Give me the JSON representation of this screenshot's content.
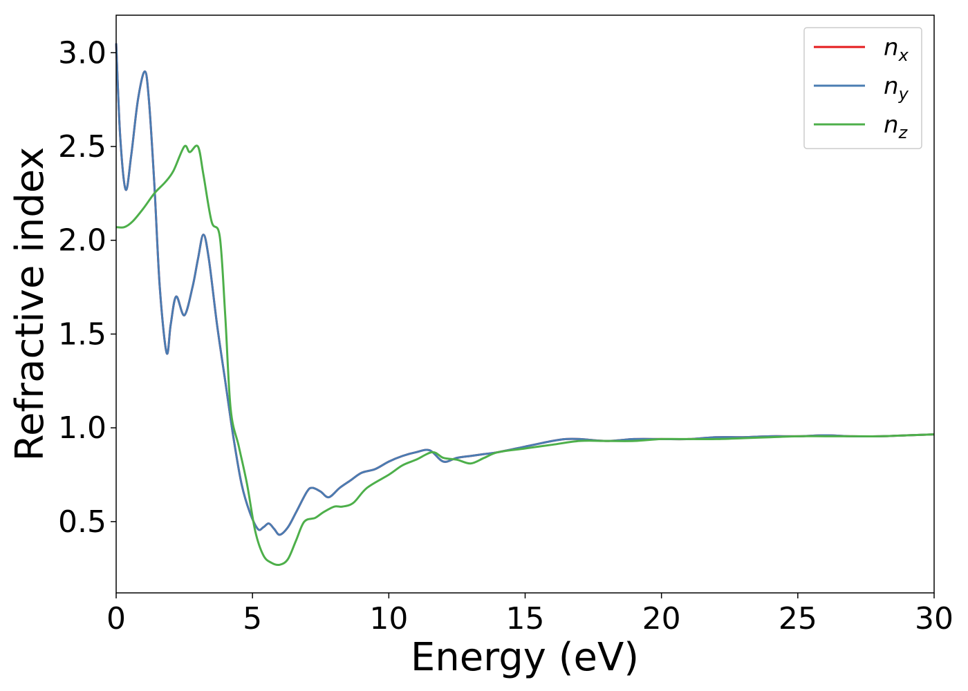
{
  "chart_data": {
    "type": "line",
    "xlabel": "Energy (eV)",
    "ylabel": "Refractive index",
    "xlim": [
      0,
      30
    ],
    "ylim": [
      0.12,
      3.2
    ],
    "xticks": [
      "0",
      "5",
      "10",
      "15",
      "20",
      "25",
      "30"
    ],
    "xtick_values": [
      0,
      5,
      10,
      15,
      20,
      25,
      30
    ],
    "yticks": [
      "0.5",
      "1.0",
      "1.5",
      "2.0",
      "2.5",
      "3.0"
    ],
    "ytick_values": [
      0.5,
      1.0,
      1.5,
      2.0,
      2.5,
      3.0
    ],
    "grid": false,
    "legend_position": "top-right",
    "series": [
      {
        "name": "n",
        "sub": "x",
        "color": "#e41a1c",
        "x": [
          0,
          0.15,
          0.35,
          0.55,
          0.8,
          1.05,
          1.2,
          1.4,
          1.6,
          1.85,
          2.0,
          2.2,
          2.5,
          2.8,
          3.0,
          3.2,
          3.4,
          3.7,
          4.0,
          4.3,
          4.6,
          4.9,
          5.2,
          5.4,
          5.6,
          5.8,
          6.0,
          6.3,
          6.6,
          7.0,
          7.2,
          7.5,
          7.8,
          8.2,
          8.6,
          9.0,
          9.5,
          10.0,
          10.5,
          11.0,
          11.5,
          12.0,
          12.5,
          13.0,
          13.5,
          14.0,
          15.0,
          16.0,
          16.5,
          17.0,
          18.0,
          19.0,
          20.0,
          21.0,
          22.0,
          23.0,
          24.0,
          25.0,
          26.0,
          27.0,
          28.0,
          29.0,
          30.0
        ],
        "values": [
          3.05,
          2.55,
          2.27,
          2.45,
          2.75,
          2.9,
          2.75,
          2.3,
          1.75,
          1.4,
          1.55,
          1.7,
          1.6,
          1.75,
          1.9,
          2.03,
          1.9,
          1.55,
          1.25,
          0.95,
          0.7,
          0.55,
          0.46,
          0.47,
          0.49,
          0.46,
          0.43,
          0.47,
          0.55,
          0.66,
          0.68,
          0.66,
          0.63,
          0.68,
          0.72,
          0.76,
          0.78,
          0.82,
          0.85,
          0.87,
          0.88,
          0.82,
          0.84,
          0.85,
          0.86,
          0.87,
          0.9,
          0.93,
          0.94,
          0.94,
          0.93,
          0.94,
          0.94,
          0.94,
          0.95,
          0.95,
          0.955,
          0.955,
          0.96,
          0.955,
          0.955,
          0.96,
          0.965
        ]
      },
      {
        "name": "n",
        "sub": "y",
        "color": "#4a7cb2",
        "x": [
          0,
          0.15,
          0.35,
          0.55,
          0.8,
          1.05,
          1.2,
          1.4,
          1.6,
          1.85,
          2.0,
          2.2,
          2.5,
          2.8,
          3.0,
          3.2,
          3.4,
          3.7,
          4.0,
          4.3,
          4.6,
          4.9,
          5.2,
          5.4,
          5.6,
          5.8,
          6.0,
          6.3,
          6.6,
          7.0,
          7.2,
          7.5,
          7.8,
          8.2,
          8.6,
          9.0,
          9.5,
          10.0,
          10.5,
          11.0,
          11.5,
          12.0,
          12.5,
          13.0,
          13.5,
          14.0,
          15.0,
          16.0,
          16.5,
          17.0,
          18.0,
          19.0,
          20.0,
          21.0,
          22.0,
          23.0,
          24.0,
          25.0,
          26.0,
          27.0,
          28.0,
          29.0,
          30.0
        ],
        "values": [
          3.05,
          2.55,
          2.27,
          2.45,
          2.75,
          2.9,
          2.75,
          2.3,
          1.75,
          1.4,
          1.55,
          1.7,
          1.6,
          1.75,
          1.9,
          2.03,
          1.9,
          1.55,
          1.25,
          0.95,
          0.7,
          0.55,
          0.46,
          0.47,
          0.49,
          0.46,
          0.43,
          0.47,
          0.55,
          0.66,
          0.68,
          0.66,
          0.63,
          0.68,
          0.72,
          0.76,
          0.78,
          0.82,
          0.85,
          0.87,
          0.88,
          0.82,
          0.84,
          0.85,
          0.86,
          0.87,
          0.9,
          0.93,
          0.94,
          0.94,
          0.93,
          0.94,
          0.94,
          0.94,
          0.95,
          0.95,
          0.955,
          0.955,
          0.96,
          0.955,
          0.955,
          0.96,
          0.965
        ]
      },
      {
        "name": "n",
        "sub": "z",
        "color": "#4daf4a",
        "x": [
          0,
          0.3,
          0.6,
          1.0,
          1.4,
          1.8,
          2.1,
          2.5,
          2.7,
          3.0,
          3.2,
          3.5,
          3.8,
          4.0,
          4.2,
          4.5,
          4.8,
          5.1,
          5.4,
          5.7,
          6.0,
          6.3,
          6.6,
          6.9,
          7.3,
          7.6,
          8.0,
          8.3,
          8.7,
          9.2,
          10.0,
          10.5,
          11.0,
          11.6,
          12.0,
          12.5,
          13.0,
          13.5,
          14.0,
          15.0,
          16.0,
          17.0,
          18.0,
          19.0,
          20.0,
          21.0,
          22.0,
          23.0,
          24.0,
          25.0,
          26.0,
          27.0,
          28.0,
          29.0,
          30.0
        ],
        "values": [
          2.07,
          2.07,
          2.1,
          2.17,
          2.25,
          2.31,
          2.37,
          2.5,
          2.47,
          2.5,
          2.35,
          2.1,
          2.02,
          1.6,
          1.1,
          0.9,
          0.7,
          0.45,
          0.32,
          0.28,
          0.27,
          0.3,
          0.4,
          0.5,
          0.52,
          0.55,
          0.58,
          0.58,
          0.6,
          0.68,
          0.75,
          0.8,
          0.83,
          0.87,
          0.84,
          0.83,
          0.81,
          0.84,
          0.87,
          0.89,
          0.91,
          0.93,
          0.93,
          0.93,
          0.94,
          0.94,
          0.94,
          0.945,
          0.95,
          0.955,
          0.955,
          0.955,
          0.955,
          0.96,
          0.965
        ]
      }
    ]
  }
}
